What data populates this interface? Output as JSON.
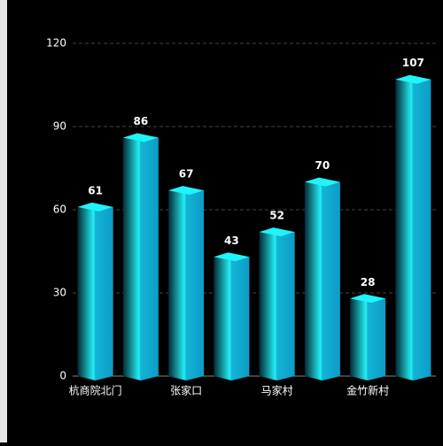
{
  "chart_data": {
    "type": "bar3d",
    "categories": [
      "杭商院北门",
      null,
      "张家口",
      null,
      "马家村",
      null,
      "金竹新村",
      null
    ],
    "values": [
      61,
      86,
      67,
      43,
      52,
      70,
      28,
      107
    ],
    "color": "#12a8d2",
    "cap_color": "#1ef4f9",
    "ylim": [
      0,
      120
    ],
    "yticks": [
      0,
      30,
      60,
      90,
      120
    ],
    "grid": true
  }
}
